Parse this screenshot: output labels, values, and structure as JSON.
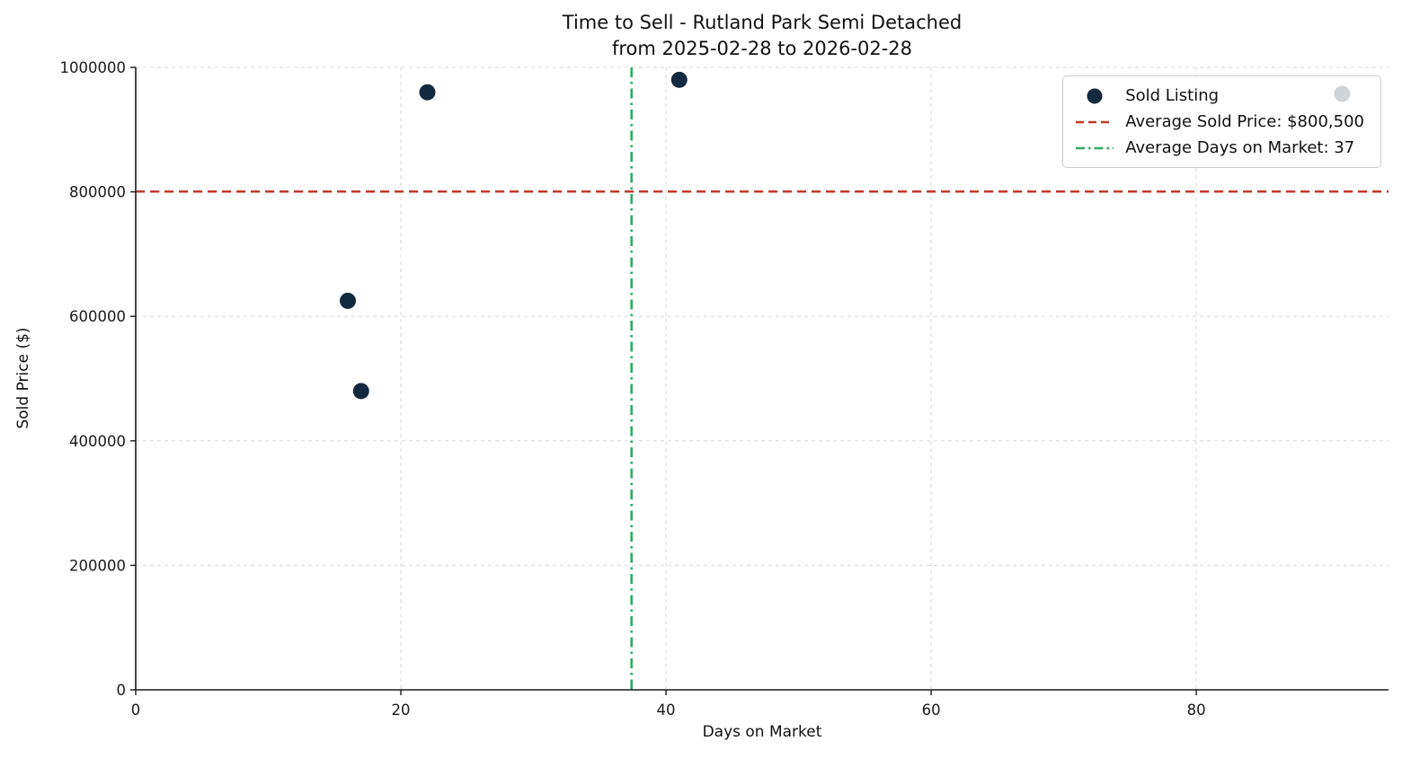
{
  "chart_data": {
    "type": "scatter",
    "title": "Time to Sell - Rutland Park Semi Detached\nfrom 2025-02-28 to 2026-02-28",
    "title_lines": [
      "Time to Sell - Rutland Park Semi Detached",
      "from 2025-02-28 to 2026-02-28"
    ],
    "xlabel": "Days on Market",
    "ylabel": "Sold Price ($)",
    "xlim": [
      0,
      94.5
    ],
    "ylim": [
      0,
      1000000
    ],
    "xticks": [
      0,
      20,
      40,
      60,
      80
    ],
    "yticks": [
      0,
      200000,
      400000,
      600000,
      800000,
      1000000
    ],
    "grid": true,
    "legend_position": "upper right",
    "colors": {
      "point": "#13293f",
      "average_price_line": "#c0392b",
      "average_days_line": "#2eab63",
      "grid": "#d9d9d9",
      "spine": "#1a1a1a",
      "tick_text": "#1a1a1a"
    },
    "series": [
      {
        "name": "Sold Listing",
        "color": "#13293f",
        "points": [
          {
            "x": 16,
            "y": 625000
          },
          {
            "x": 17,
            "y": 480000
          },
          {
            "x": 22,
            "y": 960000
          },
          {
            "x": 41,
            "y": 980000
          },
          {
            "x": 91,
            "y": 957500
          }
        ]
      }
    ],
    "reference_lines": [
      {
        "label": "Average Sold Price: $800,500",
        "orientation": "horizontal",
        "value": 800500,
        "color": "#c0392b",
        "linestyle": "dashed"
      },
      {
        "label": "Average Days on Market: 37",
        "orientation": "vertical",
        "value": 37.4,
        "color": "#2eab63",
        "linestyle": "dashdot"
      }
    ],
    "stats": {
      "average_sold_price_label": "$800,500",
      "average_days_on_market_label": "37"
    },
    "legend": {
      "entries": [
        {
          "label": "Sold Listing",
          "marker": "circle",
          "color": "#13293f"
        },
        {
          "label": "Average Sold Price: $800,500",
          "marker": "dashed-line",
          "color": "#c0392b"
        },
        {
          "label": "Average Days on Market: 37",
          "marker": "dashdot-line",
          "color": "#2eab63"
        }
      ]
    }
  }
}
